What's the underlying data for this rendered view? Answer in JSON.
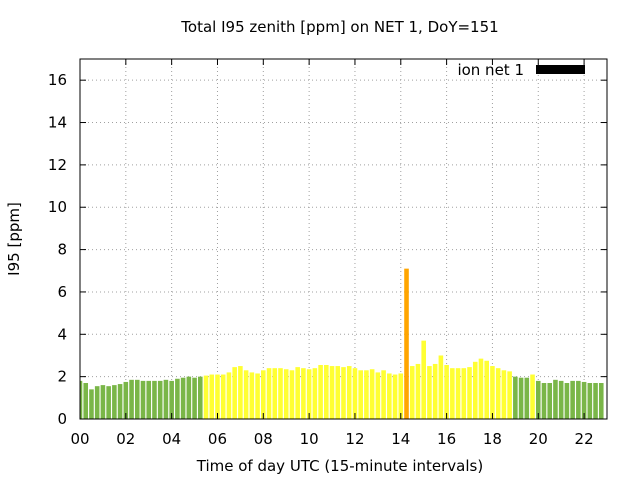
{
  "chart_data": {
    "type": "bar",
    "title": "Total I95 zenith [ppm] on NET 1, DoY=151",
    "xlabel": "Time of day UTC (15-minute intervals)",
    "ylabel": "I95 [ppm]",
    "xlim": [
      0,
      23
    ],
    "ylim": [
      0,
      17
    ],
    "x_ticks": [
      0,
      2,
      4,
      6,
      8,
      10,
      12,
      14,
      16,
      18,
      20,
      22
    ],
    "x_tick_labels": [
      "00",
      "02",
      "04",
      "06",
      "08",
      "10",
      "12",
      "14",
      "16",
      "18",
      "20",
      "22"
    ],
    "y_ticks": [
      0,
      2,
      4,
      6,
      8,
      10,
      12,
      14,
      16
    ],
    "y_tick_labels": [
      "0",
      "2",
      "4",
      "6",
      "8",
      "10",
      "12",
      "14",
      "16"
    ],
    "grid": true,
    "legend": {
      "label": "ion net 1",
      "color": "#000000",
      "position": "top-right"
    },
    "colors": {
      "low": "#7ab648",
      "medium": "#ffff33",
      "high": "#ffa500"
    },
    "interval_hours": 0.25,
    "values": [
      1.8,
      1.7,
      1.4,
      1.55,
      1.6,
      1.55,
      1.6,
      1.65,
      1.75,
      1.85,
      1.85,
      1.8,
      1.8,
      1.8,
      1.8,
      1.85,
      1.8,
      1.9,
      1.95,
      2.0,
      1.95,
      2.0,
      2.05,
      2.1,
      2.1,
      2.1,
      2.2,
      2.45,
      2.5,
      2.3,
      2.2,
      2.15,
      2.3,
      2.4,
      2.4,
      2.4,
      2.35,
      2.3,
      2.45,
      2.4,
      2.35,
      2.4,
      2.55,
      2.55,
      2.5,
      2.5,
      2.45,
      2.5,
      2.4,
      2.3,
      2.3,
      2.35,
      2.2,
      2.3,
      2.15,
      2.1,
      2.15,
      7.1,
      2.5,
      2.6,
      3.7,
      2.5,
      2.6,
      3.0,
      2.55,
      2.4,
      2.4,
      2.4,
      2.45,
      2.7,
      2.85,
      2.75,
      2.5,
      2.4,
      2.3,
      2.25,
      2.0,
      1.95,
      1.95,
      2.1,
      1.8,
      1.7,
      1.7,
      1.85,
      1.8,
      1.7,
      1.8,
      1.8,
      1.75,
      1.7,
      1.7,
      1.7
    ],
    "categories": [
      "low",
      "low",
      "low",
      "low",
      "low",
      "low",
      "low",
      "low",
      "low",
      "low",
      "low",
      "low",
      "low",
      "low",
      "low",
      "low",
      "low",
      "low",
      "low",
      "low",
      "low",
      "low",
      "medium",
      "medium",
      "medium",
      "medium",
      "medium",
      "medium",
      "medium",
      "medium",
      "medium",
      "medium",
      "medium",
      "medium",
      "medium",
      "medium",
      "medium",
      "medium",
      "medium",
      "medium",
      "medium",
      "medium",
      "medium",
      "medium",
      "medium",
      "medium",
      "medium",
      "medium",
      "medium",
      "medium",
      "medium",
      "medium",
      "medium",
      "medium",
      "medium",
      "medium",
      "medium",
      "high",
      "medium",
      "medium",
      "medium",
      "medium",
      "medium",
      "medium",
      "medium",
      "medium",
      "medium",
      "medium",
      "medium",
      "medium",
      "medium",
      "medium",
      "medium",
      "medium",
      "medium",
      "medium",
      "low",
      "low",
      "low",
      "medium",
      "low",
      "low",
      "low",
      "low",
      "low",
      "low",
      "low",
      "low",
      "low",
      "low",
      "low",
      "low"
    ]
  }
}
